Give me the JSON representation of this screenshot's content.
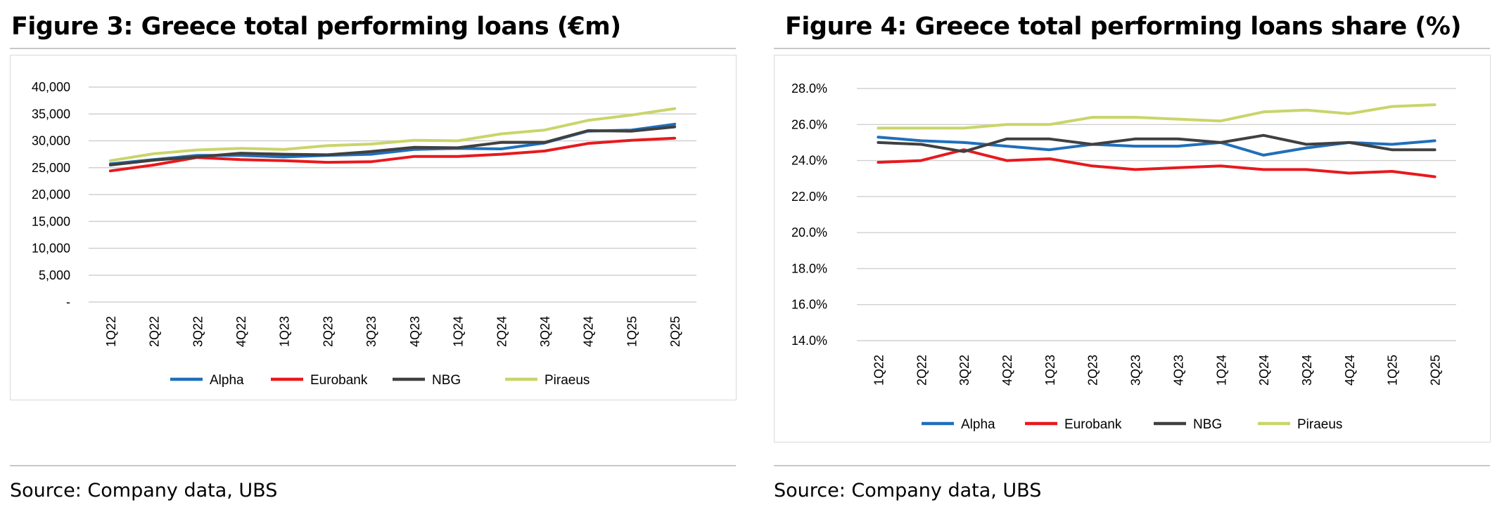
{
  "figures": [
    {
      "title": "Figure 3: Greece total performing loans (€m)",
      "source": "Source: Company data, UBS"
    },
    {
      "title": "Figure 4: Greece total performing loans share (%)",
      "source": "Source: Company data, UBS"
    }
  ],
  "chart_data": [
    {
      "type": "line",
      "title": "Figure 3: Greece total performing loans (€m)",
      "categories": [
        "1Q22",
        "2Q22",
        "3Q22",
        "4Q22",
        "1Q23",
        "2Q23",
        "3Q23",
        "4Q23",
        "1Q24",
        "2Q24",
        "3Q24",
        "4Q24",
        "1Q25",
        "2Q25"
      ],
      "ylim": [
        0,
        40000
      ],
      "yticks": [
        0,
        5000,
        10000,
        15000,
        20000,
        25000,
        30000,
        35000,
        40000
      ],
      "ytick_labels": [
        "-",
        "5,000",
        "10,000",
        "15,000",
        "20,000",
        "25,000",
        "30,000",
        "35,000",
        "40,000"
      ],
      "grid": true,
      "legend": "bottom",
      "series": [
        {
          "name": "Alpha",
          "color": "#1f6fba",
          "values": [
            25700,
            26500,
            27300,
            27300,
            27000,
            27300,
            27500,
            28400,
            28600,
            28500,
            29600,
            31800,
            32000,
            33100
          ]
        },
        {
          "name": "Eurobank",
          "color": "#e8191d",
          "values": [
            24400,
            25500,
            26900,
            26500,
            26300,
            26000,
            26100,
            27100,
            27100,
            27500,
            28100,
            29500,
            30100,
            30500
          ]
        },
        {
          "name": "NBG",
          "color": "#404040",
          "values": [
            25500,
            26400,
            27000,
            27700,
            27500,
            27400,
            28000,
            28800,
            28700,
            29700,
            29700,
            31900,
            31800,
            32600
          ]
        },
        {
          "name": "Piraeus",
          "color": "#c9d56a",
          "values": [
            26300,
            27600,
            28300,
            28600,
            28400,
            29100,
            29400,
            30100,
            30000,
            31300,
            32000,
            33800,
            34800,
            36000
          ]
        }
      ]
    },
    {
      "type": "line",
      "title": "Figure 4: Greece total performing loans share (%)",
      "categories": [
        "1Q22",
        "2Q22",
        "3Q22",
        "4Q22",
        "1Q23",
        "2Q23",
        "3Q23",
        "4Q23",
        "1Q24",
        "2Q24",
        "3Q24",
        "4Q24",
        "1Q25",
        "2Q25"
      ],
      "ylim": [
        14,
        28
      ],
      "yticks": [
        14,
        16,
        18,
        20,
        22,
        24,
        26,
        28
      ],
      "ytick_labels": [
        "14.0%",
        "16.0%",
        "18.0%",
        "20.0%",
        "22.0%",
        "24.0%",
        "26.0%",
        "28.0%"
      ],
      "grid": true,
      "legend": "bottom",
      "series": [
        {
          "name": "Alpha",
          "color": "#1f6fba",
          "values": [
            25.3,
            25.1,
            25.0,
            24.8,
            24.6,
            24.9,
            24.8,
            24.8,
            25.0,
            24.3,
            24.7,
            25.0,
            24.9,
            25.1
          ]
        },
        {
          "name": "Eurobank",
          "color": "#e8191d",
          "values": [
            23.9,
            24.0,
            24.6,
            24.0,
            24.1,
            23.7,
            23.5,
            23.6,
            23.7,
            23.5,
            23.5,
            23.3,
            23.4,
            23.1
          ]
        },
        {
          "name": "NBG",
          "color": "#404040",
          "values": [
            25.0,
            24.9,
            24.5,
            25.2,
            25.2,
            24.9,
            25.2,
            25.2,
            25.0,
            25.4,
            24.9,
            25.0,
            24.6,
            24.6
          ]
        },
        {
          "name": "Piraeus",
          "color": "#c9d56a",
          "values": [
            25.8,
            25.8,
            25.8,
            26.0,
            26.0,
            26.4,
            26.4,
            26.3,
            26.2,
            26.7,
            26.8,
            26.6,
            27.0,
            27.1
          ]
        }
      ]
    }
  ]
}
